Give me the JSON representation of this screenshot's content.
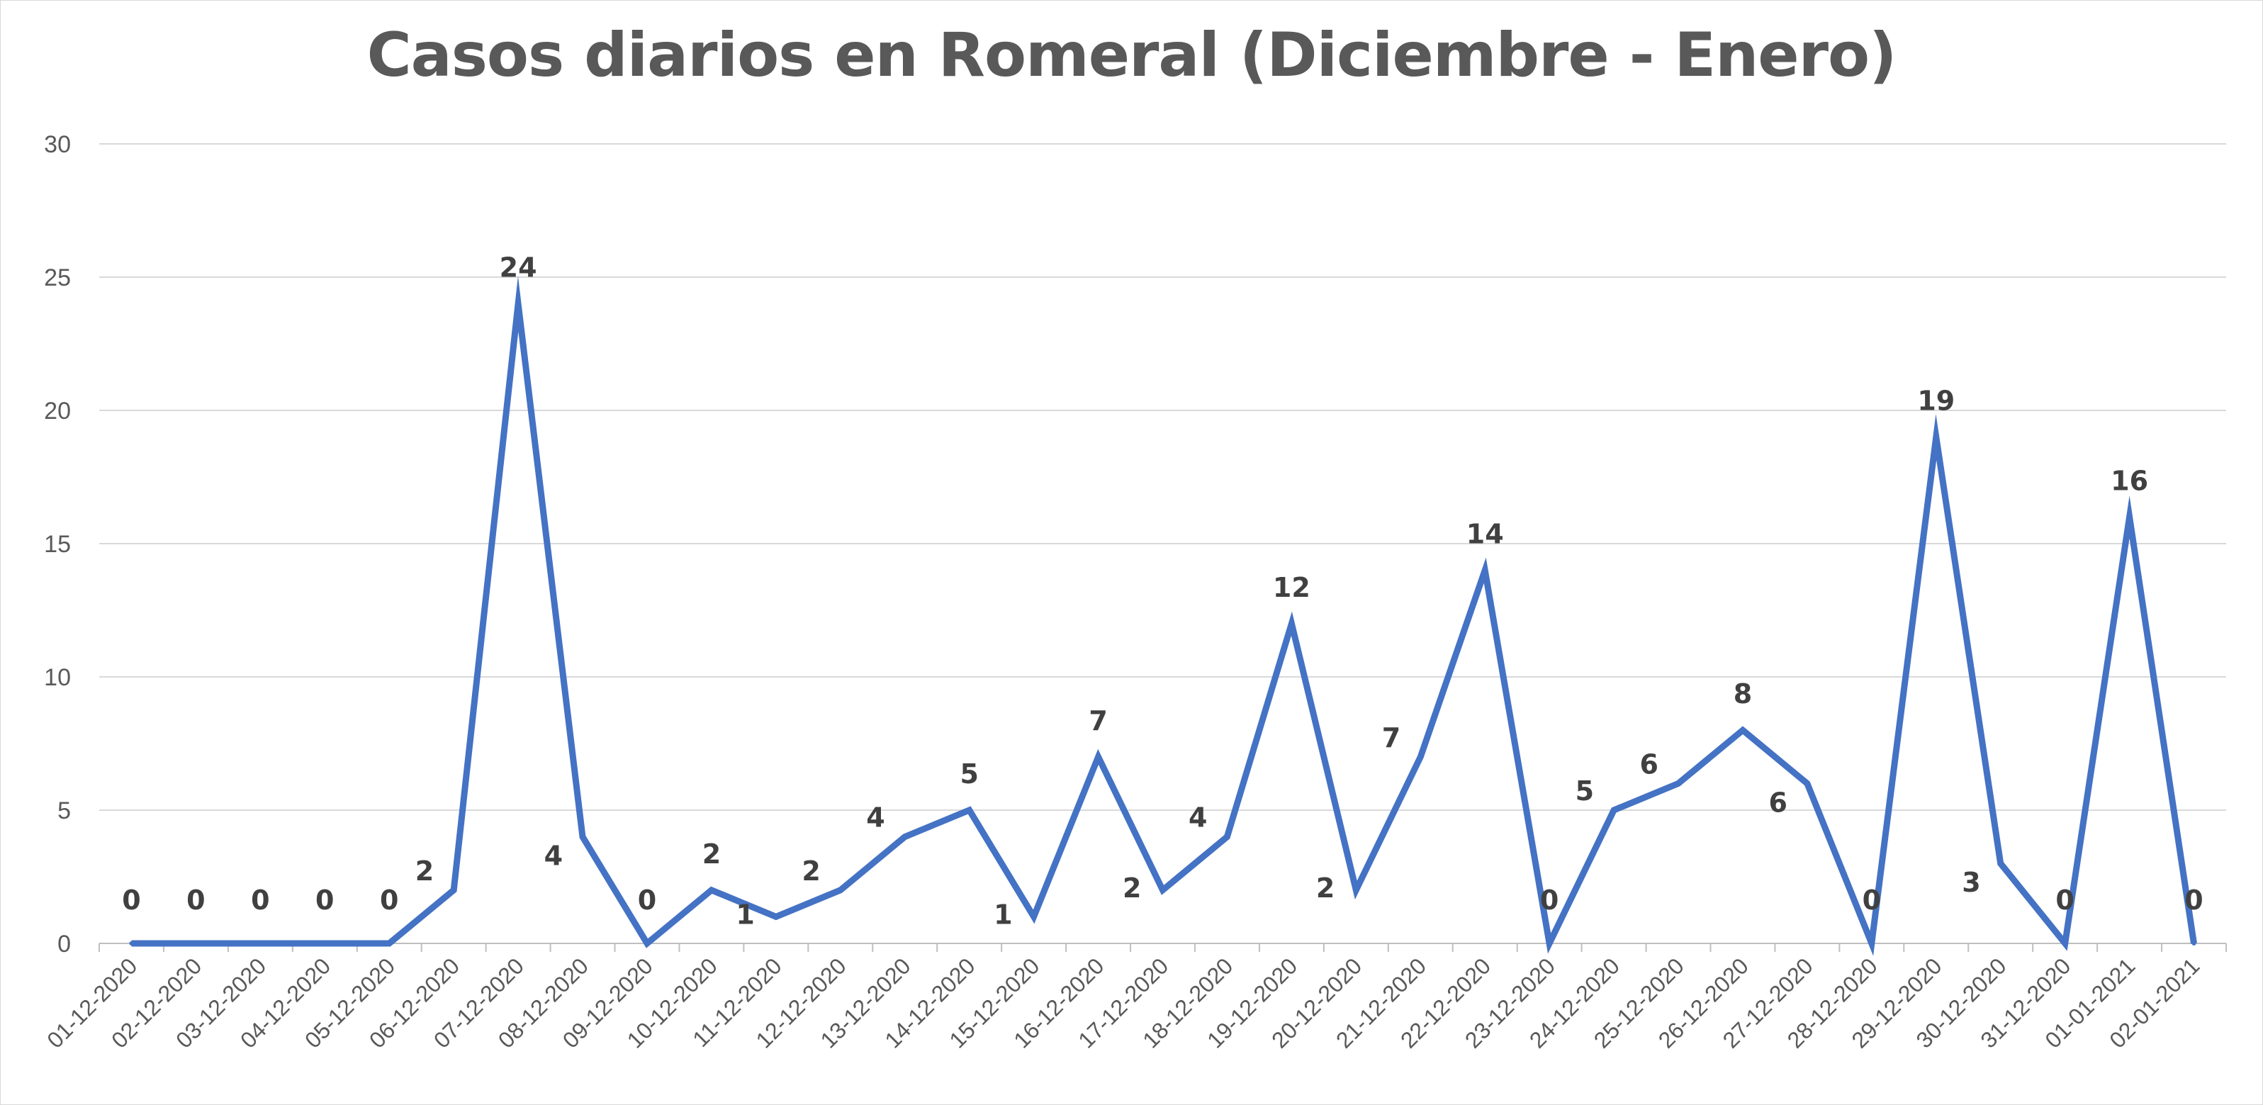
{
  "chart_data": {
    "type": "line",
    "title": "Casos diarios en Romeral (Diciembre - Enero)",
    "xlabel": "",
    "ylabel": "",
    "ylim": [
      0,
      30
    ],
    "yticks": [
      "0",
      "5",
      "10",
      "15",
      "20",
      "25",
      "30"
    ],
    "grid": "horizontal",
    "legend": "none",
    "categories": [
      "01-12-2020",
      "02-12-2020",
      "03-12-2020",
      "04-12-2020",
      "05-12-2020",
      "06-12-2020",
      "07-12-2020",
      "08-12-2020",
      "09-12-2020",
      "10-12-2020",
      "11-12-2020",
      "12-12-2020",
      "13-12-2020",
      "14-12-2020",
      "15-12-2020",
      "16-12-2020",
      "17-12-2020",
      "18-12-2020",
      "19-12-2020",
      "20-12-2020",
      "21-12-2020",
      "22-12-2020",
      "23-12-2020",
      "24-12-2020",
      "25-12-2020",
      "26-12-2020",
      "27-12-2020",
      "28-12-2020",
      "29-12-2020",
      "30-12-2020",
      "31-12-2020",
      "01-01-2021",
      "02-01-2021"
    ],
    "series": [
      {
        "values": [
          0,
          0,
          0,
          0,
          0,
          2,
          24,
          4,
          0,
          2,
          1,
          2,
          4,
          5,
          1,
          7,
          2,
          4,
          12,
          2,
          7,
          14,
          0,
          5,
          6,
          8,
          6,
          0,
          19,
          3,
          0,
          16,
          0
        ],
        "color": "#4472c4"
      }
    ]
  }
}
